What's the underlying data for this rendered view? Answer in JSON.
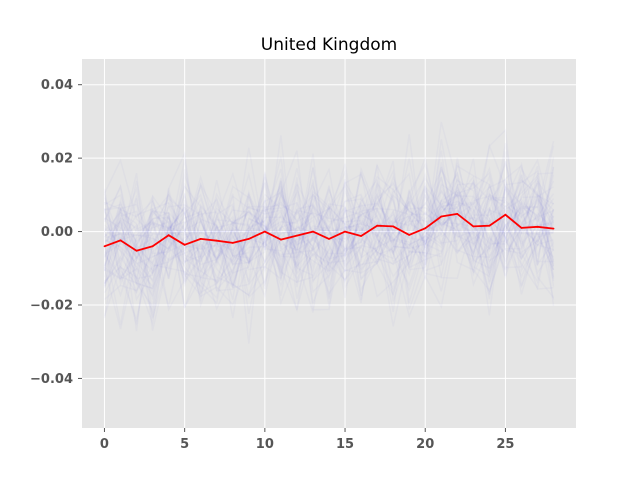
{
  "chart_data": {
    "type": "line",
    "title": "United Kingdom",
    "xlabel": "",
    "ylabel": "",
    "xlim": [
      -1.4,
      29.4
    ],
    "ylim": [
      -0.0535,
      0.047
    ],
    "x_ticks": [
      0,
      5,
      10,
      15,
      20,
      25
    ],
    "y_ticks": [
      -0.04,
      -0.02,
      0.0,
      0.02,
      0.04
    ],
    "y_tick_labels": [
      "−0.04",
      "−0.02",
      "0.00",
      "0.02",
      "0.04"
    ],
    "grid": true,
    "background_color": "#e5e5e5",
    "grid_color": "#ffffff",
    "tick_label_color": "#555555",
    "series": [
      {
        "role": "mean",
        "color": "#ff0000",
        "x": [
          0,
          1,
          2,
          3,
          4,
          5,
          6,
          7,
          8,
          9,
          10,
          11,
          12,
          13,
          14,
          15,
          16,
          17,
          18,
          19,
          20,
          21,
          22,
          23,
          24,
          25,
          26,
          27,
          28
        ],
        "values": [
          -0.004,
          -0.0024,
          -0.0052,
          -0.004,
          -0.001,
          -0.0036,
          -0.002,
          -0.0025,
          -0.0031,
          -0.002,
          0.0,
          -0.0022,
          -0.0011,
          0.0,
          -0.002,
          0.0,
          -0.0012,
          0.0016,
          0.0014,
          -0.0009,
          0.0009,
          0.0041,
          0.0048,
          0.0014,
          0.0016,
          0.0046,
          0.001,
          0.0013,
          0.0008
        ]
      }
    ],
    "background_samples": {
      "count": 60,
      "color": "#4a4ae0",
      "opacity": 0.03,
      "approx_spread_sd": 0.012
    }
  }
}
